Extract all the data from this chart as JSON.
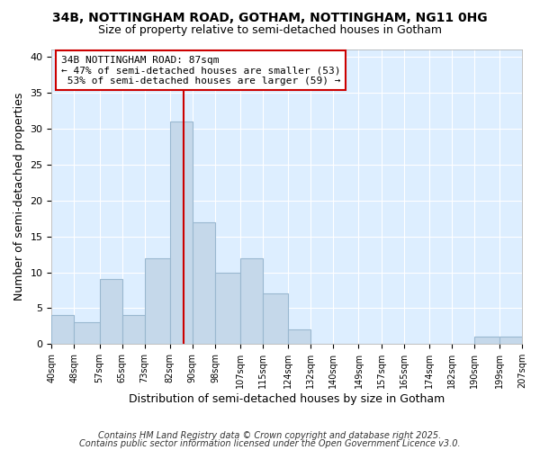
{
  "title_line1": "34B, NOTTINGHAM ROAD, GOTHAM, NOTTINGHAM, NG11 0HG",
  "title_line2": "Size of property relative to semi-detached houses in Gotham",
  "xlabel": "Distribution of semi-detached houses by size in Gotham",
  "ylabel": "Number of semi-detached properties",
  "bin_labels": [
    "40sqm",
    "48sqm",
    "57sqm",
    "65sqm",
    "73sqm",
    "82sqm",
    "90sqm",
    "98sqm",
    "107sqm",
    "115sqm",
    "124sqm",
    "132sqm",
    "140sqm",
    "149sqm",
    "157sqm",
    "165sqm",
    "174sqm",
    "182sqm",
    "190sqm",
    "199sqm",
    "207sqm"
  ],
  "bin_edges": [
    40,
    48,
    57,
    65,
    73,
    82,
    90,
    98,
    107,
    115,
    124,
    132,
    140,
    149,
    157,
    165,
    174,
    182,
    190,
    199,
    207
  ],
  "bar_heights": [
    4,
    3,
    9,
    4,
    12,
    31,
    17,
    10,
    12,
    7,
    2,
    0,
    0,
    0,
    0,
    0,
    0,
    0,
    1,
    1,
    0
  ],
  "bar_color": "#c5d8ea",
  "bar_edge_color": "#9ab8d0",
  "property_size": 87,
  "property_label": "34B NOTTINGHAM ROAD: 87sqm",
  "pct_smaller": 47,
  "count_smaller": 53,
  "pct_larger": 53,
  "count_larger": 59,
  "vline_color": "#cc0000",
  "ylim": [
    0,
    41
  ],
  "yticks": [
    0,
    5,
    10,
    15,
    20,
    25,
    30,
    35,
    40
  ],
  "fig_bg_color": "#ffffff",
  "plot_bg_color": "#ddeeff",
  "grid_color": "#ffffff",
  "footer_line1": "Contains HM Land Registry data © Crown copyright and database right 2025.",
  "footer_line2": "Contains public sector information licensed under the Open Government Licence v3.0.",
  "annotation_box_color": "#ffffff",
  "annotation_border_color": "#cc0000",
  "title_fontsize": 10,
  "subtitle_fontsize": 9,
  "tick_fontsize": 7,
  "label_fontsize": 9,
  "annot_fontsize": 8,
  "footer_fontsize": 7
}
